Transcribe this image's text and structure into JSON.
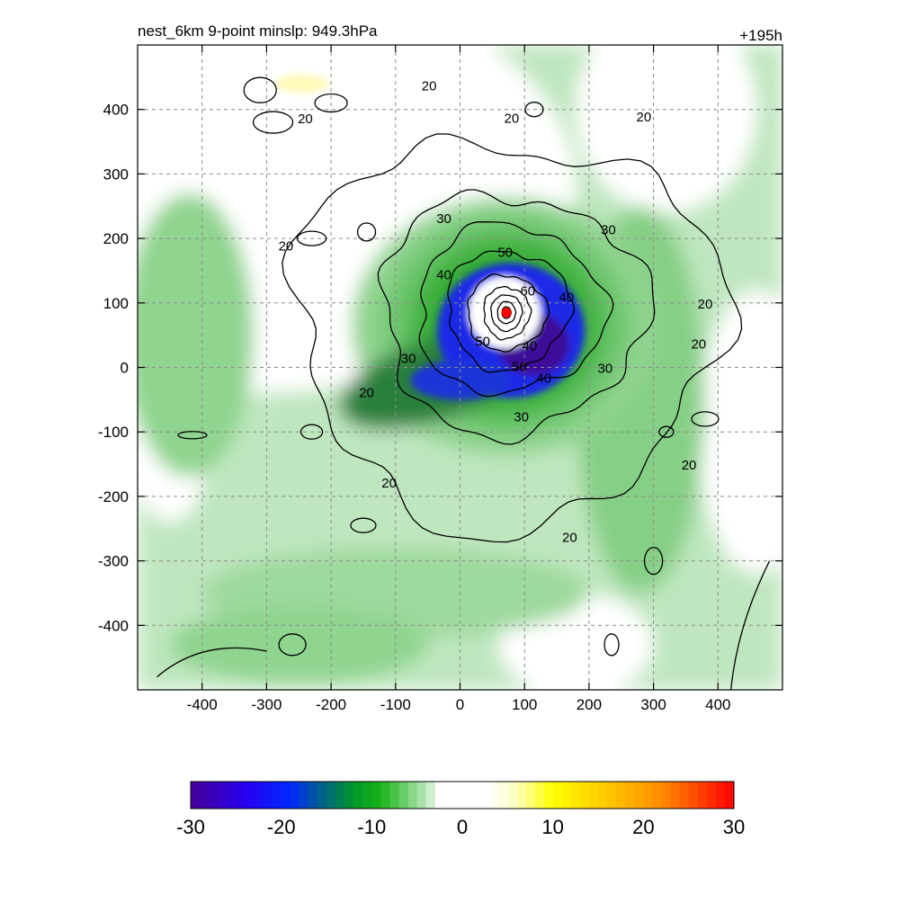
{
  "chart_data": {
    "type": "heatmap",
    "title_left": "nest_6km  9-point minslp: 949.3hPa",
    "title_right": "+195h",
    "xlim": [
      -500,
      500
    ],
    "ylim": [
      -500,
      500
    ],
    "x_ticks": [
      -400,
      -300,
      -200,
      -100,
      0,
      100,
      200,
      300,
      400
    ],
    "y_ticks": [
      -400,
      -300,
      -200,
      -100,
      0,
      100,
      200,
      300,
      400
    ],
    "grid": "dashed",
    "center_marker": {
      "x": 72,
      "y": 85,
      "color": "#ff0000"
    },
    "colorbar": {
      "range": [
        -30,
        30
      ],
      "ticks": [
        -30,
        -20,
        -10,
        0,
        10,
        20,
        30
      ],
      "placement": "bottom"
    },
    "contour_levels": [
      20,
      30,
      40,
      50,
      60
    ],
    "contour_labels": [
      {
        "text": "20",
        "x": -48,
        "y": 438
      },
      {
        "text": "20",
        "x": -240,
        "y": 387
      },
      {
        "text": "20",
        "x": 80,
        "y": 388
      },
      {
        "text": "20",
        "x": 285,
        "y": 390
      },
      {
        "text": "20",
        "x": -270,
        "y": 190
      },
      {
        "text": "20",
        "x": 380,
        "y": 100
      },
      {
        "text": "20",
        "x": 370,
        "y": 38
      },
      {
        "text": "20",
        "x": -145,
        "y": -38
      },
      {
        "text": "20",
        "x": 355,
        "y": -150
      },
      {
        "text": "20",
        "x": -110,
        "y": -178
      },
      {
        "text": "20",
        "x": 170,
        "y": -262
      },
      {
        "text": "30",
        "x": -25,
        "y": 232
      },
      {
        "text": "30",
        "x": 230,
        "y": 215
      },
      {
        "text": "30",
        "x": -80,
        "y": 15
      },
      {
        "text": "30",
        "x": 225,
        "y": 0
      },
      {
        "text": "30",
        "x": 95,
        "y": -75
      },
      {
        "text": "40",
        "x": -25,
        "y": 145
      },
      {
        "text": "40",
        "x": 165,
        "y": 110
      },
      {
        "text": "40",
        "x": 108,
        "y": 35
      },
      {
        "text": "40",
        "x": 130,
        "y": -15
      },
      {
        "text": "50",
        "x": 70,
        "y": 180
      },
      {
        "text": "50",
        "x": 35,
        "y": 42
      },
      {
        "text": "50",
        "x": 92,
        "y": 3
      },
      {
        "text": "60",
        "x": 105,
        "y": 120
      }
    ]
  }
}
